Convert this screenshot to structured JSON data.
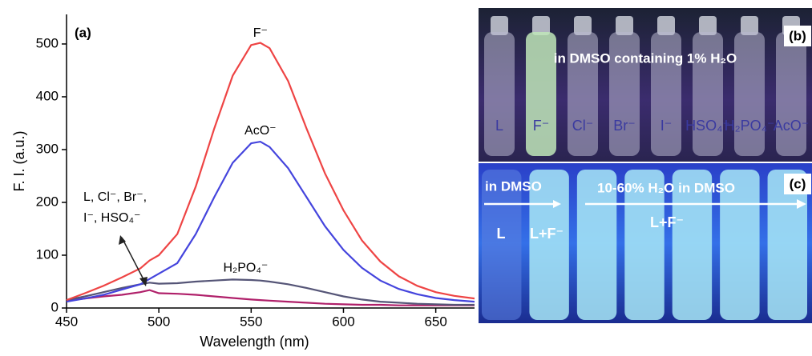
{
  "chart_data": {
    "type": "line",
    "panel_label": "(a)",
    "x_label": "Wavelength (nm)",
    "y_label": "F. I. (a.u.)",
    "xlim": [
      450,
      671
    ],
    "ylim": [
      0,
      556
    ],
    "xticks": [
      450,
      500,
      550,
      600,
      650
    ],
    "yticks": [
      0,
      100,
      200,
      300,
      400,
      500
    ],
    "x": [
      450,
      460,
      470,
      480,
      490,
      495,
      500,
      510,
      520,
      530,
      540,
      550,
      555,
      560,
      570,
      580,
      590,
      600,
      610,
      620,
      630,
      640,
      650,
      660,
      671
    ],
    "series": [
      {
        "name": "F⁻",
        "color": "#ee4444",
        "values": [
          15,
          28,
          42,
          58,
          75,
          90,
          100,
          140,
          230,
          340,
          440,
          498,
          502,
          492,
          430,
          340,
          255,
          185,
          128,
          88,
          60,
          42,
          30,
          23,
          18
        ]
      },
      {
        "name": "AcO⁻",
        "color": "#4444dd",
        "values": [
          12,
          18,
          25,
          35,
          45,
          55,
          65,
          85,
          140,
          210,
          275,
          312,
          315,
          305,
          265,
          210,
          155,
          110,
          76,
          52,
          36,
          26,
          19,
          15,
          12
        ]
      },
      {
        "name": "H₂PO₄⁻",
        "color": "#555577",
        "values": [
          15,
          22,
          30,
          38,
          45,
          48,
          46,
          47,
          50,
          52,
          54,
          53,
          52,
          50,
          45,
          38,
          30,
          22,
          16,
          12,
          10,
          8,
          7,
          6,
          6
        ]
      },
      {
        "color": "#b0206a",
        "values": [
          14,
          18,
          22,
          25,
          30,
          34,
          28,
          27,
          25,
          22,
          19,
          16,
          15,
          14,
          12,
          10,
          8,
          7,
          6,
          6,
          5,
          5,
          5,
          5,
          5
        ]
      }
    ],
    "annotation": [
      "L, Cl⁻, Br⁻,",
      "I⁻, HSO₄⁻"
    ]
  },
  "photos": {
    "b": {
      "label": "(b)",
      "caption": "in DMSO containing 1% H₂O",
      "vials": [
        "L",
        "F⁻",
        "Cl⁻",
        "Br⁻",
        "I⁻",
        "HSO₄⁻",
        "H₂PO₄⁻",
        "AcO⁻"
      ]
    },
    "c": {
      "label": "(c)",
      "caption_left": "in DMSO",
      "caption_right": "10-60% H₂O in DMSO",
      "vials": [
        "L",
        "L+F⁻",
        "L+F⁻"
      ]
    }
  }
}
